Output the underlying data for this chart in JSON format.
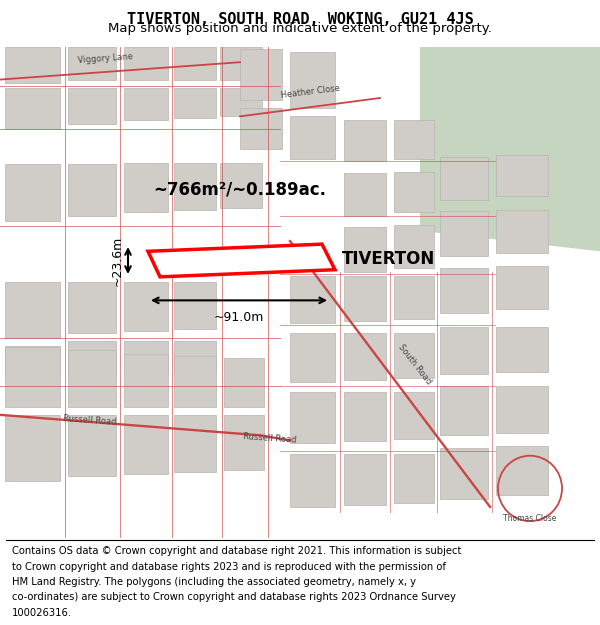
{
  "title_line1": "TIVERTON, SOUTH ROAD, WOKING, GU21 4JS",
  "title_line2": "Map shows position and indicative extent of the property.",
  "property_label": "TIVERTON",
  "area_label": "~766m²/~0.189ac.",
  "width_label": "~91.0m",
  "height_label": "~23.6m",
  "footer_lines": [
    "Contains OS data © Crown copyright and database right 2021. This information is subject",
    "to Crown copyright and database rights 2023 and is reproduced with the permission of",
    "HM Land Registry. The polygons (including the associated geometry, namely x, y",
    "co-ordinates) are subject to Crown copyright and database rights 2023 Ordnance Survey",
    "100026316."
  ],
  "map_bg": "#f5f0eb",
  "road_color": "#cc4444",
  "property_outline_color": "#ff0000",
  "block_color": "#d0ccc7",
  "green_color": "#c5d5c0",
  "title_fontsize": 11,
  "subtitle_fontsize": 9.5,
  "footer_fontsize": 7.2
}
